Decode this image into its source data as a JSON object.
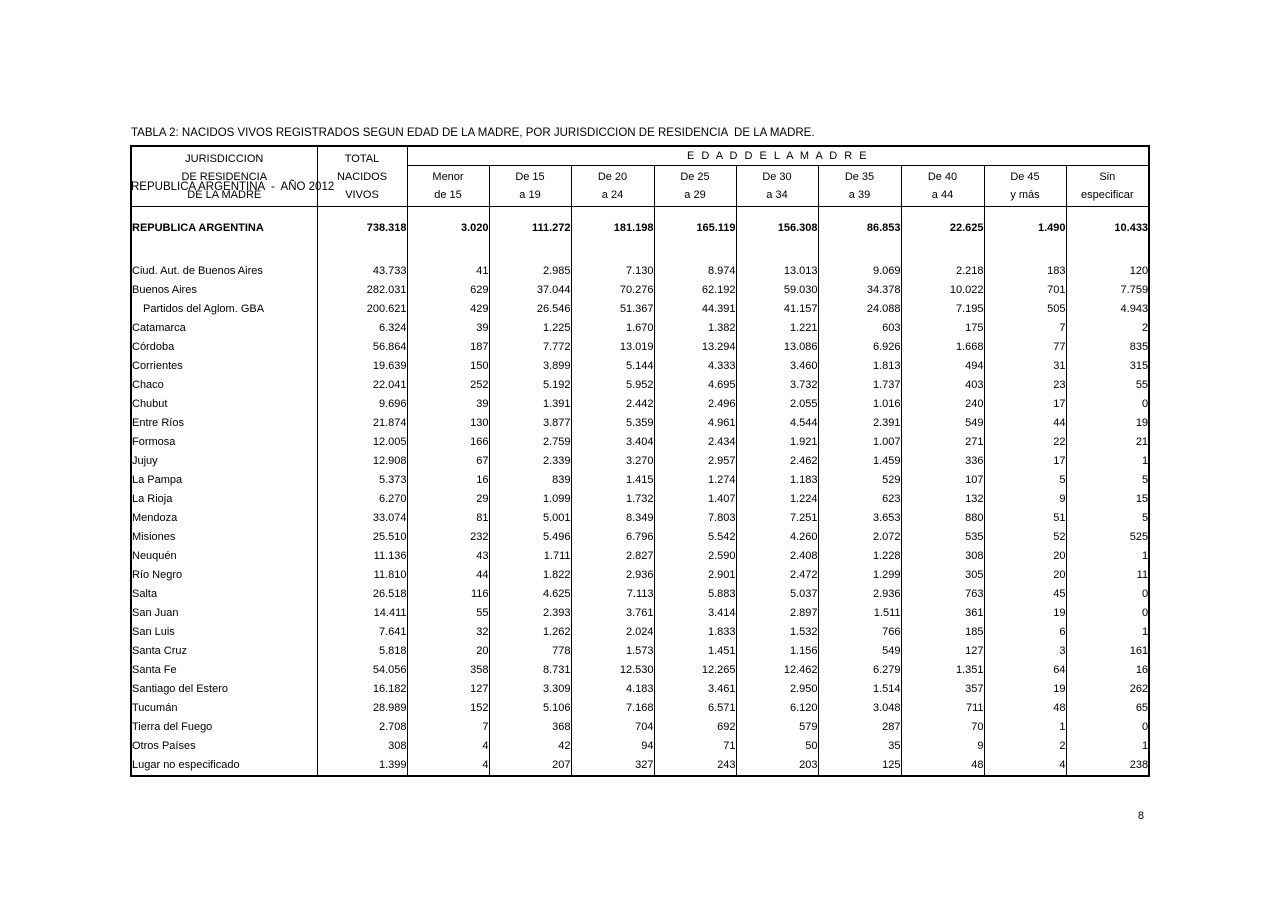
{
  "title": "TABLA 2: NACIDOS VIVOS REGISTRADOS SEGUN EDAD DE LA MADRE, POR JURISDICCION DE RESIDENCIA  DE LA MADRE.",
  "subtitle": "REPUBLICA ARGENTINA  -  AÑO 2012",
  "page_number": "8",
  "table": {
    "header": {
      "jurisdiction_lines": [
        "JURISDICCION",
        "DE RESIDENCIA",
        "DE LA MADRE"
      ],
      "total_lines": [
        "TOTAL",
        "NACIDOS",
        "VIVOS"
      ],
      "group_label": "E D A D    D E   L A     M A D R E",
      "age_columns": [
        {
          "line1": "Menor",
          "line2": "de 15"
        },
        {
          "line1": "De 15",
          "line2": "a 19"
        },
        {
          "line1": "De 20",
          "line2": "a 24"
        },
        {
          "line1": "De 25",
          "line2": "a 29"
        },
        {
          "line1": "De 30",
          "line2": "a 34"
        },
        {
          "line1": "De 35",
          "line2": "a 39"
        },
        {
          "line1": "De 40",
          "line2": "a 44"
        },
        {
          "line1": "De 45",
          "line2": "y más"
        },
        {
          "line1": "Sin",
          "line2": "especificar"
        }
      ]
    },
    "rows": [
      {
        "name": "REPUBLICA ARGENTINA",
        "bold": true,
        "values": [
          "738.318",
          "3.020",
          "111.272",
          "181.198",
          "165.119",
          "156.308",
          "86.853",
          "22.625",
          "1.490",
          "10.433"
        ]
      },
      {
        "name": "Ciud. Aut. de  Buenos Aires",
        "values": [
          "43.733",
          "41",
          "2.985",
          "7.130",
          "8.974",
          "13.013",
          "9.069",
          "2.218",
          "183",
          "120"
        ]
      },
      {
        "name": "Buenos Aires",
        "values": [
          "282.031",
          "629",
          "37.044",
          "70.276",
          "62.192",
          "59.030",
          "34.378",
          "10.022",
          "701",
          "7.759"
        ]
      },
      {
        "name": "Partidos del Aglom. GBA",
        "indent": true,
        "values": [
          "200.621",
          "429",
          "26.546",
          "51.367",
          "44.391",
          "41.157",
          "24.088",
          "7.195",
          "505",
          "4.943"
        ]
      },
      {
        "name": "Catamarca",
        "values": [
          "6.324",
          "39",
          "1.225",
          "1.670",
          "1.382",
          "1.221",
          "603",
          "175",
          "7",
          "2"
        ]
      },
      {
        "name": "Córdoba",
        "values": [
          "56.864",
          "187",
          "7.772",
          "13.019",
          "13.294",
          "13.086",
          "6.926",
          "1.668",
          "77",
          "835"
        ]
      },
      {
        "name": "Corrientes",
        "values": [
          "19.639",
          "150",
          "3.899",
          "5.144",
          "4.333",
          "3.460",
          "1.813",
          "494",
          "31",
          "315"
        ]
      },
      {
        "name": "Chaco",
        "values": [
          "22.041",
          "252",
          "5.192",
          "5.952",
          "4.695",
          "3.732",
          "1.737",
          "403",
          "23",
          "55"
        ]
      },
      {
        "name": "Chubut",
        "values": [
          "9.696",
          "39",
          "1.391",
          "2.442",
          "2.496",
          "2.055",
          "1.016",
          "240",
          "17",
          "0"
        ]
      },
      {
        "name": "Entre Ríos",
        "values": [
          "21.874",
          "130",
          "3.877",
          "5.359",
          "4.961",
          "4.544",
          "2.391",
          "549",
          "44",
          "19"
        ]
      },
      {
        "name": "Formosa",
        "values": [
          "12.005",
          "166",
          "2.759",
          "3.404",
          "2.434",
          "1.921",
          "1.007",
          "271",
          "22",
          "21"
        ]
      },
      {
        "name": "Jujuy",
        "values": [
          "12.908",
          "67",
          "2.339",
          "3.270",
          "2.957",
          "2.462",
          "1.459",
          "336",
          "17",
          "1"
        ]
      },
      {
        "name": "La Pampa",
        "values": [
          "5.373",
          "16",
          "839",
          "1.415",
          "1.274",
          "1.183",
          "529",
          "107",
          "5",
          "5"
        ]
      },
      {
        "name": "La Rioja",
        "values": [
          "6.270",
          "29",
          "1.099",
          "1.732",
          "1.407",
          "1.224",
          "623",
          "132",
          "9",
          "15"
        ]
      },
      {
        "name": "Mendoza",
        "values": [
          "33.074",
          "81",
          "5.001",
          "8.349",
          "7.803",
          "7.251",
          "3.653",
          "880",
          "51",
          "5"
        ]
      },
      {
        "name": "Misiones",
        "values": [
          "25.510",
          "232",
          "5.496",
          "6.796",
          "5.542",
          "4.260",
          "2.072",
          "535",
          "52",
          "525"
        ]
      },
      {
        "name": "Neuquén",
        "values": [
          "11.136",
          "43",
          "1.711",
          "2.827",
          "2.590",
          "2.408",
          "1.228",
          "308",
          "20",
          "1"
        ]
      },
      {
        "name": "Río Negro",
        "values": [
          "11.810",
          "44",
          "1.822",
          "2.936",
          "2.901",
          "2.472",
          "1.299",
          "305",
          "20",
          "11"
        ]
      },
      {
        "name": "Salta",
        "values": [
          "26.518",
          "116",
          "4.625",
          "7.113",
          "5.883",
          "5.037",
          "2.936",
          "763",
          "45",
          "0"
        ]
      },
      {
        "name": "San Juan",
        "values": [
          "14.411",
          "55",
          "2.393",
          "3.761",
          "3.414",
          "2.897",
          "1.511",
          "361",
          "19",
          "0"
        ]
      },
      {
        "name": "San Luis",
        "values": [
          "7.641",
          "32",
          "1.262",
          "2.024",
          "1.833",
          "1.532",
          "766",
          "185",
          "6",
          "1"
        ]
      },
      {
        "name": "Santa Cruz",
        "values": [
          "5.818",
          "20",
          "778",
          "1.573",
          "1.451",
          "1.156",
          "549",
          "127",
          "3",
          "161"
        ]
      },
      {
        "name": "Santa Fe",
        "values": [
          "54.056",
          "358",
          "8.731",
          "12.530",
          "12.265",
          "12.462",
          "6.279",
          "1.351",
          "64",
          "16"
        ]
      },
      {
        "name": "Santiago del Estero",
        "values": [
          "16.182",
          "127",
          "3.309",
          "4.183",
          "3.461",
          "2.950",
          "1.514",
          "357",
          "19",
          "262"
        ]
      },
      {
        "name": "Tucumán",
        "values": [
          "28.989",
          "152",
          "5.106",
          "7.168",
          "6.571",
          "6.120",
          "3.048",
          "711",
          "48",
          "65"
        ]
      },
      {
        "name": "Tierra del Fuego",
        "values": [
          "2.708",
          "7",
          "368",
          "704",
          "692",
          "579",
          "287",
          "70",
          "1",
          "0"
        ]
      },
      {
        "name": "Otros Países",
        "values": [
          "308",
          "4",
          "42",
          "94",
          "71",
          "50",
          "35",
          "9",
          "2",
          "1"
        ]
      },
      {
        "name": "Lugar no especificado",
        "values": [
          "1.399",
          "4",
          "207",
          "327",
          "243",
          "203",
          "125",
          "48",
          "4",
          "238"
        ]
      }
    ]
  }
}
